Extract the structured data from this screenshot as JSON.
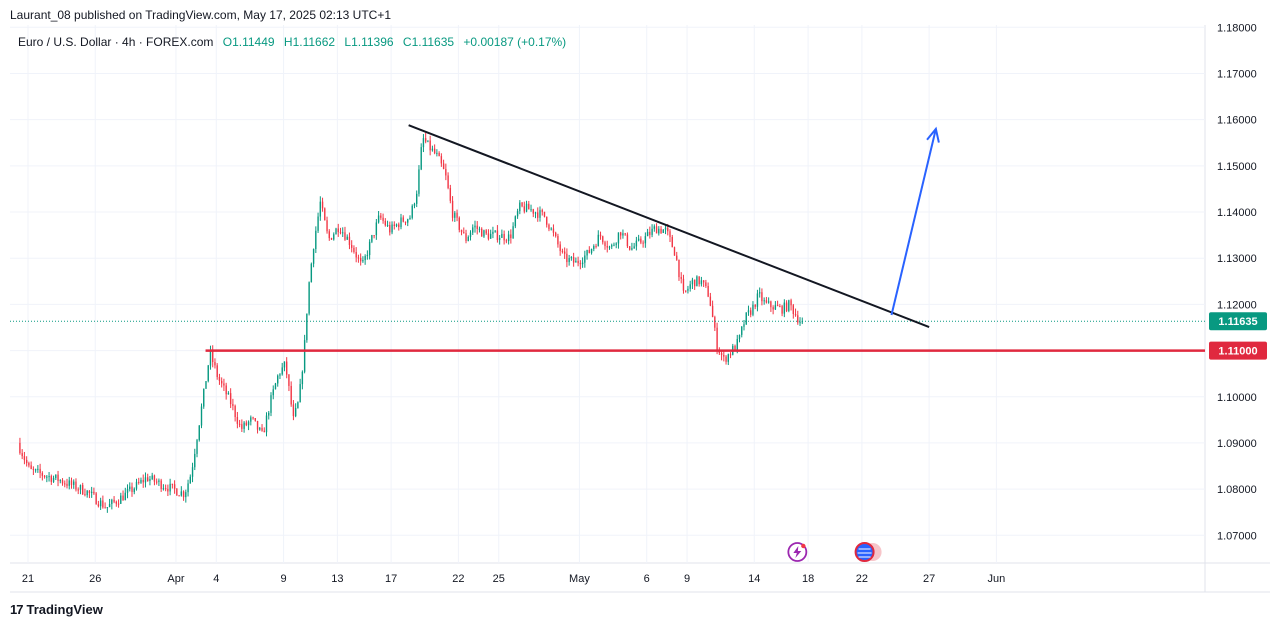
{
  "header": {
    "publisher": "Laurant_08 published on TradingView.com, May 17, 2025 02:13 UTC+1",
    "symbol": "Euro / U.S. Dollar · 4h · FOREX.com",
    "open": "O1.11449",
    "high": "H1.11662",
    "low": "L1.11396",
    "close": "C1.11635",
    "change": "+0.00187 (+0.17%)"
  },
  "brand": {
    "logo_glyph": "17",
    "name": "TradingView"
  },
  "colors": {
    "up": "#089981",
    "down": "#f23645",
    "trendline": "#131722",
    "support": "#e0293f",
    "arrow": "#2962ff",
    "grid": "#f0f3fa",
    "axis_text": "#131722"
  },
  "icons": [
    "lightning-event-icon",
    "us-flag-event-icon"
  ],
  "chart_data": {
    "type": "candlestick",
    "timeframe": "4h",
    "grid": true,
    "ylim": [
      1.064,
      1.1805
    ],
    "y_ticks": [
      "1.07000",
      "1.08000",
      "1.09000",
      "1.10000",
      "1.11000",
      "1.12000",
      "1.13000",
      "1.14000",
      "1.15000",
      "1.16000",
      "1.17000",
      "1.18000"
    ],
    "x_ticks": [
      {
        "label": "21",
        "day": 0
      },
      {
        "label": "26",
        "day": 5
      },
      {
        "label": "Apr",
        "day": 11
      },
      {
        "label": "4",
        "day": 14
      },
      {
        "label": "9",
        "day": 19
      },
      {
        "label": "13",
        "day": 23
      },
      {
        "label": "17",
        "day": 27
      },
      {
        "label": "22",
        "day": 32
      },
      {
        "label": "25",
        "day": 35
      },
      {
        "label": "May",
        "day": 41
      },
      {
        "label": "6",
        "day": 46
      },
      {
        "label": "9",
        "day": 49
      },
      {
        "label": "14",
        "day": 54
      },
      {
        "label": "18",
        "day": 58
      },
      {
        "label": "22",
        "day": 62
      },
      {
        "label": "27",
        "day": 67
      },
      {
        "label": "Jun",
        "day": 72
      }
    ],
    "last_price": {
      "label": "1.11635",
      "value": 1.11635
    },
    "support_level": {
      "label": "1.11000",
      "value": 1.11
    },
    "trendline": {
      "from": {
        "day": 28.3,
        "price": 1.1588
      },
      "to": {
        "day": 67,
        "price": 1.1151
      }
    },
    "projection_arrow": {
      "from": {
        "day": 64.2,
        "price": 1.1177
      },
      "to": {
        "day": 67.5,
        "price": 1.158
      }
    },
    "anchors": [
      {
        "day": -0.6,
        "price": 1.09
      },
      {
        "day": 0.3,
        "price": 1.084
      },
      {
        "day": 2.5,
        "price": 1.082
      },
      {
        "day": 4.5,
        "price": 1.0795
      },
      {
        "day": 6.0,
        "price": 1.076
      },
      {
        "day": 7.5,
        "price": 1.079
      },
      {
        "day": 9.0,
        "price": 1.0825
      },
      {
        "day": 10.5,
        "price": 1.0805
      },
      {
        "day": 11.8,
        "price": 1.079
      },
      {
        "day": 12.3,
        "price": 1.0835
      },
      {
        "day": 13.2,
        "price": 1.1
      },
      {
        "day": 13.7,
        "price": 1.1095
      },
      {
        "day": 14.3,
        "price": 1.104
      },
      {
        "day": 15.2,
        "price": 1.099
      },
      {
        "day": 16.0,
        "price": 1.093
      },
      {
        "day": 16.8,
        "price": 1.095
      },
      {
        "day": 17.6,
        "price": 1.0915
      },
      {
        "day": 18.2,
        "price": 1.099
      },
      {
        "day": 18.8,
        "price": 1.105
      },
      {
        "day": 19.3,
        "price": 1.107
      },
      {
        "day": 19.9,
        "price": 1.095
      },
      {
        "day": 20.3,
        "price": 1.099
      },
      {
        "day": 20.7,
        "price": 1.11
      },
      {
        "day": 21.0,
        "price": 1.123
      },
      {
        "day": 21.4,
        "price": 1.133
      },
      {
        "day": 21.9,
        "price": 1.142
      },
      {
        "day": 22.5,
        "price": 1.134
      },
      {
        "day": 23.3,
        "price": 1.137
      },
      {
        "day": 24.2,
        "price": 1.133
      },
      {
        "day": 25.0,
        "price": 1.128
      },
      {
        "day": 25.7,
        "price": 1.134
      },
      {
        "day": 26.3,
        "price": 1.139
      },
      {
        "day": 27.1,
        "price": 1.136
      },
      {
        "day": 27.9,
        "price": 1.138
      },
      {
        "day": 28.6,
        "price": 1.139
      },
      {
        "day": 29.1,
        "price": 1.145
      },
      {
        "day": 29.5,
        "price": 1.156
      },
      {
        "day": 30.0,
        "price": 1.154
      },
      {
        "day": 30.6,
        "price": 1.152
      },
      {
        "day": 31.2,
        "price": 1.148
      },
      {
        "day": 31.7,
        "price": 1.14
      },
      {
        "day": 32.2,
        "price": 1.137
      },
      {
        "day": 32.7,
        "price": 1.134
      },
      {
        "day": 33.3,
        "price": 1.137
      },
      {
        "day": 34.2,
        "price": 1.135
      },
      {
        "day": 35.0,
        "price": 1.135
      },
      {
        "day": 36.0,
        "price": 1.1345
      },
      {
        "day": 36.7,
        "price": 1.141
      },
      {
        "day": 37.6,
        "price": 1.1405
      },
      {
        "day": 38.6,
        "price": 1.139
      },
      {
        "day": 39.4,
        "price": 1.134
      },
      {
        "day": 40.0,
        "price": 1.13
      },
      {
        "day": 40.9,
        "price": 1.129
      },
      {
        "day": 41.8,
        "price": 1.131
      },
      {
        "day": 42.7,
        "price": 1.135
      },
      {
        "day": 43.5,
        "price": 1.132
      },
      {
        "day": 44.2,
        "price": 1.136
      },
      {
        "day": 45.0,
        "price": 1.132
      },
      {
        "day": 45.9,
        "price": 1.134
      },
      {
        "day": 46.8,
        "price": 1.1365
      },
      {
        "day": 47.6,
        "price": 1.136
      },
      {
        "day": 48.3,
        "price": 1.131
      },
      {
        "day": 48.9,
        "price": 1.122
      },
      {
        "day": 49.6,
        "price": 1.125
      },
      {
        "day": 50.2,
        "price": 1.125
      },
      {
        "day": 50.8,
        "price": 1.122
      },
      {
        "day": 51.4,
        "price": 1.111
      },
      {
        "day": 51.9,
        "price": 1.108
      },
      {
        "day": 52.5,
        "price": 1.11
      },
      {
        "day": 53.0,
        "price": 1.112
      },
      {
        "day": 53.5,
        "price": 1.117
      },
      {
        "day": 54.0,
        "price": 1.119
      },
      {
        "day": 54.5,
        "price": 1.122
      },
      {
        "day": 55.0,
        "price": 1.12
      },
      {
        "day": 55.6,
        "price": 1.1195
      },
      {
        "day": 56.2,
        "price": 1.119
      },
      {
        "day": 56.8,
        "price": 1.12
      },
      {
        "day": 57.3,
        "price": 1.1175
      },
      {
        "day": 57.6,
        "price": 1.1163
      }
    ]
  }
}
